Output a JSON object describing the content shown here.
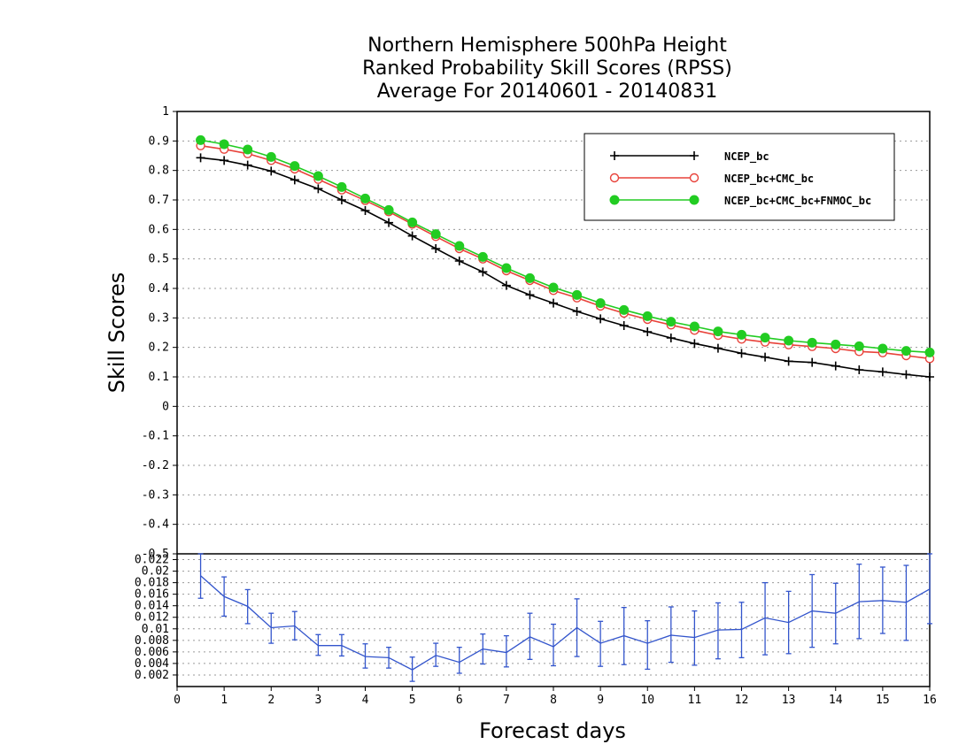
{
  "title_lines": [
    "Northern Hemisphere 500hPa Height",
    "Ranked Probability Skill Scores (RPSS)",
    "Average For 20140601 - 20140831"
  ],
  "ylabel": "Skill Scores",
  "xlabel": "Forecast days",
  "chart_data": [
    {
      "type": "line",
      "xlim": [
        0,
        16
      ],
      "ylim": [
        -0.5,
        1
      ],
      "x_ticks": [
        "0",
        "1",
        "2",
        "3",
        "4",
        "5",
        "6",
        "7",
        "8",
        "9",
        "10",
        "11",
        "12",
        "13",
        "14",
        "15",
        "16"
      ],
      "y_ticks": [
        "-0.5",
        "-0.4",
        "-0.3",
        "-0.2",
        "-0.1",
        "0",
        "0.1",
        "0.2",
        "0.3",
        "0.4",
        "0.5",
        "0.6",
        "0.7",
        "0.8",
        "0.9",
        "1"
      ],
      "grid": true,
      "legend_position": "top-right",
      "x": [
        0.5,
        1,
        1.5,
        2,
        2.5,
        3,
        3.5,
        4,
        4.5,
        5,
        5.5,
        6,
        6.5,
        7,
        7.5,
        8,
        8.5,
        9,
        9.5,
        10,
        10.5,
        11,
        11.5,
        12,
        12.5,
        13,
        13.5,
        14,
        14.5,
        15,
        15.5,
        16
      ],
      "series": [
        {
          "name": "NCEP_bc",
          "color": "#000000",
          "marker": "plus",
          "values": [
            0.843,
            0.834,
            0.818,
            0.798,
            0.768,
            0.738,
            0.7,
            0.664,
            0.623,
            0.578,
            0.535,
            0.493,
            0.456,
            0.41,
            0.378,
            0.35,
            0.322,
            0.297,
            0.274,
            0.253,
            0.232,
            0.213,
            0.197,
            0.18,
            0.167,
            0.153,
            0.149,
            0.137,
            0.124,
            0.117,
            0.108,
            0.1
          ]
        },
        {
          "name": "NCEP_bc+CMC_bc",
          "color": "#e8423a",
          "marker": "open-circle",
          "values": [
            0.884,
            0.872,
            0.857,
            0.834,
            0.805,
            0.77,
            0.734,
            0.698,
            0.66,
            0.618,
            0.576,
            0.535,
            0.5,
            0.46,
            0.427,
            0.393,
            0.368,
            0.34,
            0.316,
            0.295,
            0.276,
            0.258,
            0.241,
            0.228,
            0.218,
            0.209,
            0.203,
            0.196,
            0.186,
            0.182,
            0.172,
            0.162
          ]
        },
        {
          "name": "NCEP_bc+CMC_bc+FNMOC_bc",
          "color": "#22cc22",
          "marker": "filled-circle",
          "values": [
            0.903,
            0.889,
            0.871,
            0.846,
            0.815,
            0.781,
            0.744,
            0.705,
            0.666,
            0.624,
            0.584,
            0.544,
            0.507,
            0.469,
            0.435,
            0.403,
            0.378,
            0.35,
            0.327,
            0.306,
            0.287,
            0.271,
            0.254,
            0.243,
            0.233,
            0.223,
            0.216,
            0.21,
            0.204,
            0.196,
            0.188,
            0.183
          ]
        }
      ]
    },
    {
      "type": "line",
      "xlim": [
        0,
        16
      ],
      "ylim": [
        0,
        0.023
      ],
      "x_ticks": [
        "0",
        "1",
        "2",
        "3",
        "4",
        "5",
        "6",
        "7",
        "8",
        "9",
        "10",
        "11",
        "12",
        "13",
        "14",
        "15",
        "16"
      ],
      "y_ticks": [
        "0.002",
        "0.004",
        "0.006",
        "0.008",
        "0.01",
        "0.012",
        "0.014",
        "0.016",
        "0.018",
        "0.02",
        "0.022"
      ],
      "grid": true,
      "color": "#3355cc",
      "x": [
        0.5,
        1,
        1.5,
        2,
        2.5,
        3,
        3.5,
        4,
        4.5,
        5,
        5.5,
        6,
        6.5,
        7,
        7.5,
        8,
        8.5,
        9,
        9.5,
        10,
        10.5,
        11,
        11.5,
        12,
        12.5,
        13,
        13.5,
        14,
        14.5,
        15,
        15.5,
        16
      ],
      "values": [
        0.0192,
        0.0156,
        0.0139,
        0.0102,
        0.0105,
        0.0071,
        0.0071,
        0.0052,
        0.005,
        0.0029,
        0.0054,
        0.0042,
        0.0065,
        0.0059,
        0.0086,
        0.0069,
        0.0102,
        0.0075,
        0.0088,
        0.0075,
        0.0089,
        0.0085,
        0.0098,
        0.0099,
        0.0119,
        0.0111,
        0.0131,
        0.0127,
        0.0147,
        0.0149,
        0.0146,
        0.0169
      ],
      "error_low": [
        0.0153,
        0.0122,
        0.0109,
        0.0075,
        0.0081,
        0.0054,
        0.0053,
        0.0032,
        0.0032,
        0.0009,
        0.0035,
        0.0023,
        0.0039,
        0.0034,
        0.0047,
        0.0036,
        0.0052,
        0.0035,
        0.0038,
        0.003,
        0.0042,
        0.0037,
        0.0048,
        0.005,
        0.0055,
        0.0057,
        0.0068,
        0.0074,
        0.0083,
        0.0092,
        0.008,
        0.0109
      ],
      "error_high": [
        0.0231,
        0.019,
        0.0168,
        0.0127,
        0.013,
        0.009,
        0.009,
        0.0074,
        0.0068,
        0.0051,
        0.0075,
        0.0068,
        0.0091,
        0.0088,
        0.0127,
        0.0108,
        0.0152,
        0.0113,
        0.0137,
        0.0114,
        0.0138,
        0.0131,
        0.0145,
        0.0146,
        0.018,
        0.0165,
        0.0194,
        0.0179,
        0.0212,
        0.0207,
        0.021,
        0.023
      ]
    }
  ]
}
